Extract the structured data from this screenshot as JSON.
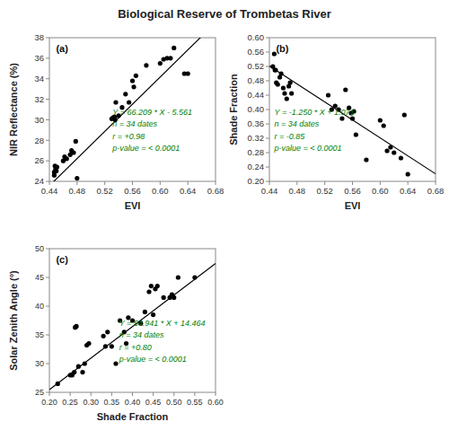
{
  "title": "Biological Reserve of Trombetas River",
  "chart_data": [
    {
      "type": "scatter",
      "label": "(a)",
      "xlabel": "EVI",
      "ylabel": "NIR Reflectance (%)",
      "xlim": [
        0.44,
        0.68
      ],
      "ylim": [
        24,
        38
      ],
      "xticks": [
        0.44,
        0.48,
        0.52,
        0.56,
        {
          "value": 0.6,
          "label": "0.60"
        },
        0.64,
        0.68
      ],
      "yticks": [
        24,
        26,
        28,
        30,
        32,
        34,
        36,
        38
      ],
      "grid": false,
      "color": "#000000",
      "x": [
        0.447,
        0.447,
        0.448,
        0.449,
        0.45,
        0.451,
        0.46,
        0.462,
        0.465,
        0.47,
        0.472,
        0.475,
        0.478,
        0.48,
        0.53,
        0.532,
        0.534,
        0.535,
        0.536,
        0.54,
        0.545,
        0.55,
        0.555,
        0.56,
        0.562,
        0.565,
        0.58,
        0.6,
        0.605,
        0.61,
        0.615,
        0.62,
        0.635,
        0.64
      ],
      "values": [
        24.6,
        24.9,
        25.5,
        25.2,
        25.0,
        25.4,
        26.0,
        26.4,
        26.2,
        26.6,
        27.0,
        26.8,
        27.9,
        24.3,
        30.1,
        30.2,
        30.3,
        30.0,
        31.7,
        30.4,
        31.2,
        32.5,
        31.7,
        33.8,
        33.2,
        34.3,
        35.3,
        35.5,
        35.9,
        36.0,
        36.0,
        37.0,
        34.5,
        34.5
      ],
      "regression": {
        "slope": 66.209,
        "intercept": -5.561,
        "color": "#000000"
      },
      "annotations": {
        "texts": [
          "Y = 66.209 * X - 5.561",
          "n = 34 dates",
          "r = +0.98",
          "p-value = < 0.0001"
        ],
        "color": "#008000"
      }
    },
    {
      "type": "scatter",
      "label": "(b)",
      "xlabel": "EVI",
      "ylabel": "Shade Fraction",
      "xlim": [
        0.44,
        0.68
      ],
      "ylim": [
        0.2,
        0.6
      ],
      "xticks": [
        0.44,
        0.48,
        0.52,
        0.56,
        {
          "value": 0.6,
          "label": "0.60"
        },
        0.64,
        0.68
      ],
      "yticks": [
        {
          "value": 0.2,
          "label": "0.20"
        },
        0.24,
        0.28,
        0.32,
        0.36,
        {
          "value": 0.4,
          "label": "0.40"
        },
        0.44,
        0.48,
        0.52,
        0.56,
        {
          "value": 0.6,
          "label": "0.60"
        }
      ],
      "grid": false,
      "color": "#000000",
      "x": [
        0.445,
        0.447,
        0.448,
        0.449,
        0.45,
        0.452,
        0.455,
        0.457,
        0.46,
        0.462,
        0.465,
        0.468,
        0.47,
        0.472,
        0.525,
        0.53,
        0.535,
        0.54,
        0.545,
        0.55,
        0.555,
        0.558,
        0.56,
        0.562,
        0.565,
        0.58,
        0.6,
        0.605,
        0.61,
        0.615,
        0.62,
        0.63,
        0.635,
        0.64
      ],
      "values": [
        0.52,
        0.555,
        0.51,
        0.51,
        0.475,
        0.47,
        0.49,
        0.5,
        0.46,
        0.445,
        0.43,
        0.465,
        0.475,
        0.445,
        0.44,
        0.4,
        0.41,
        0.4,
        0.375,
        0.455,
        0.405,
        0.39,
        0.375,
        0.395,
        0.33,
        0.26,
        0.37,
        0.355,
        0.285,
        0.295,
        0.28,
        0.265,
        0.385,
        0.22
      ],
      "regression": {
        "slope": -1.25,
        "intercept": 1.071,
        "color": "#000000"
      },
      "annotations": {
        "texts": [
          "Y = -1.250 * X + 1.071",
          "n = 34 dates",
          "r = -0.85",
          "p-value = < 0.0001"
        ],
        "color": "#008000"
      }
    },
    {
      "type": "scatter",
      "label": "(c)",
      "xlabel": "Shade Fraction",
      "ylabel": "Solar Zenith Angle (°)",
      "xlim": [
        0.2,
        0.6
      ],
      "ylim": [
        25,
        50
      ],
      "xticks": [
        {
          "value": 0.2,
          "label": "0.20"
        },
        0.25,
        {
          "value": 0.3,
          "label": "0.30"
        },
        0.35,
        {
          "value": 0.4,
          "label": "0.40"
        },
        0.45,
        {
          "value": 0.5,
          "label": "0.50"
        },
        0.55,
        {
          "value": 0.6,
          "label": "0.60"
        }
      ],
      "yticks": [
        25,
        30,
        35,
        40,
        45,
        50
      ],
      "grid": false,
      "color": "#000000",
      "x": [
        0.22,
        0.25,
        0.255,
        0.26,
        0.262,
        0.265,
        0.27,
        0.28,
        0.285,
        0.29,
        0.295,
        0.33,
        0.335,
        0.34,
        0.35,
        0.36,
        0.37,
        0.38,
        0.385,
        0.39,
        0.4,
        0.42,
        0.43,
        0.44,
        0.445,
        0.45,
        0.455,
        0.46,
        0.475,
        0.49,
        0.495,
        0.5,
        0.51,
        0.55
      ],
      "values": [
        26.5,
        28.0,
        28.0,
        28.5,
        36.3,
        36.5,
        29.5,
        28.5,
        30.0,
        33.2,
        33.5,
        34.8,
        33.0,
        35.5,
        33.0,
        30.0,
        37.5,
        35.5,
        33.5,
        38.0,
        37.5,
        37.0,
        39.0,
        42.5,
        43.5,
        38.5,
        43.0,
        43.5,
        41.5,
        41.5,
        42.0,
        41.5,
        45.0,
        45.0
      ],
      "regression": {
        "slope": 54.941,
        "intercept": 14.464,
        "color": "#000000"
      },
      "annotations": {
        "texts": [
          "Y = 54.941 * X + 14.464",
          "n = 34 dates",
          "r = +0.80",
          "p-value = < 0.0001"
        ],
        "color": "#008000"
      }
    }
  ]
}
